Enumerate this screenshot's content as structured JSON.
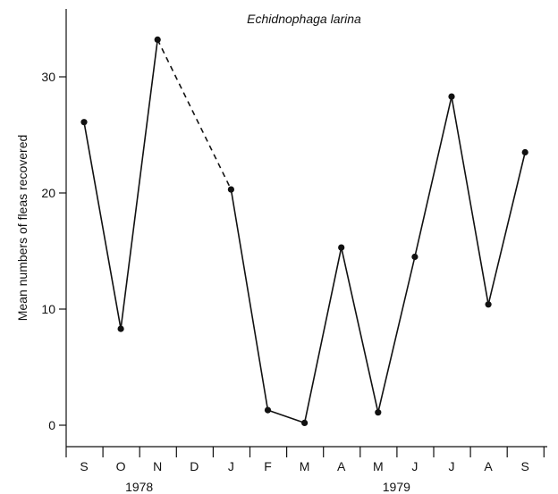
{
  "chart_data": {
    "type": "line",
    "title": "Echidnophaga larina",
    "ylabel": "Mean numbers of fleas recovered",
    "xlabel": "",
    "ylim": [
      0,
      35
    ],
    "yticks": [
      0,
      10,
      20,
      30
    ],
    "categories": [
      "S",
      "O",
      "N",
      "D",
      "J",
      "F",
      "M",
      "A",
      "M",
      "J",
      "J",
      "A",
      "S"
    ],
    "year_labels": [
      {
        "text": "1978",
        "category_index": 1.5
      },
      {
        "text": "1979",
        "category_index": 8.5
      }
    ],
    "series": [
      {
        "values": [
          26.1,
          8.3,
          33.2,
          null,
          20.3,
          1.3,
          0.2,
          15.3,
          1.1,
          14.5,
          28.3,
          10.4,
          23.5
        ],
        "gap_bridges": [
          {
            "from_index": 2,
            "to_index": 4,
            "style": "dashed"
          }
        ]
      }
    ],
    "grid": false,
    "legend": "none",
    "line_color": "#111111"
  }
}
